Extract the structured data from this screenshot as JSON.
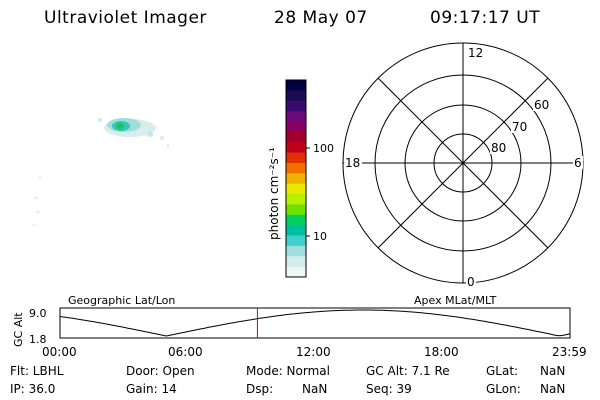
{
  "header": {
    "instrument": "Ultraviolet Imager",
    "date": "28 May 07",
    "time": "09:17:17 UT"
  },
  "colorbar": {
    "axis_label": "photon cm⁻²s⁻¹",
    "ticks": [
      "100",
      "10"
    ],
    "colors": [
      "#000040",
      "#1a0a52",
      "#3b0a6e",
      "#6a0a7a",
      "#8a0060",
      "#a0002a",
      "#c0001a",
      "#e03000",
      "#f07000",
      "#f0b000",
      "#e8e800",
      "#b8f000",
      "#70e000",
      "#00d060",
      "#00c0a0",
      "#40d0d0",
      "#a0e0e0",
      "#d0eeee",
      "#eef6f6"
    ]
  },
  "polar_plot": {
    "mlt_labels": {
      "top": "12",
      "bottom": "0",
      "left": "18",
      "right": "6"
    },
    "lat_labels": [
      "60",
      "70",
      "80"
    ]
  },
  "altitude_plot": {
    "left_title": "Geographic Lat/Lon",
    "right_title": "Apex MLat/MLT",
    "ylabel": "GC Alt",
    "y_ticks": [
      "9.0",
      "1.8"
    ],
    "x_ticks": [
      "00:00",
      "06:00",
      "12:00",
      "18:00",
      "23:59"
    ],
    "current_time_hours": 9.29,
    "line_color": "#000000",
    "marker_color": "#cc0000"
  },
  "status": {
    "flt": "Flt: LBHL",
    "door": "Door: Open",
    "mode": "Mode: Normal",
    "gc_alt": "GC Alt: 7.1 Re",
    "glat_label": "GLat:",
    "glat_value": "NaN",
    "ip": "IP: 36.0",
    "gain": "Gain: 14",
    "dsp_label": "Dsp:",
    "dsp_value": "NaN",
    "seq": "Seq: 39",
    "glon_label": "GLon:",
    "glon_value": "NaN"
  }
}
